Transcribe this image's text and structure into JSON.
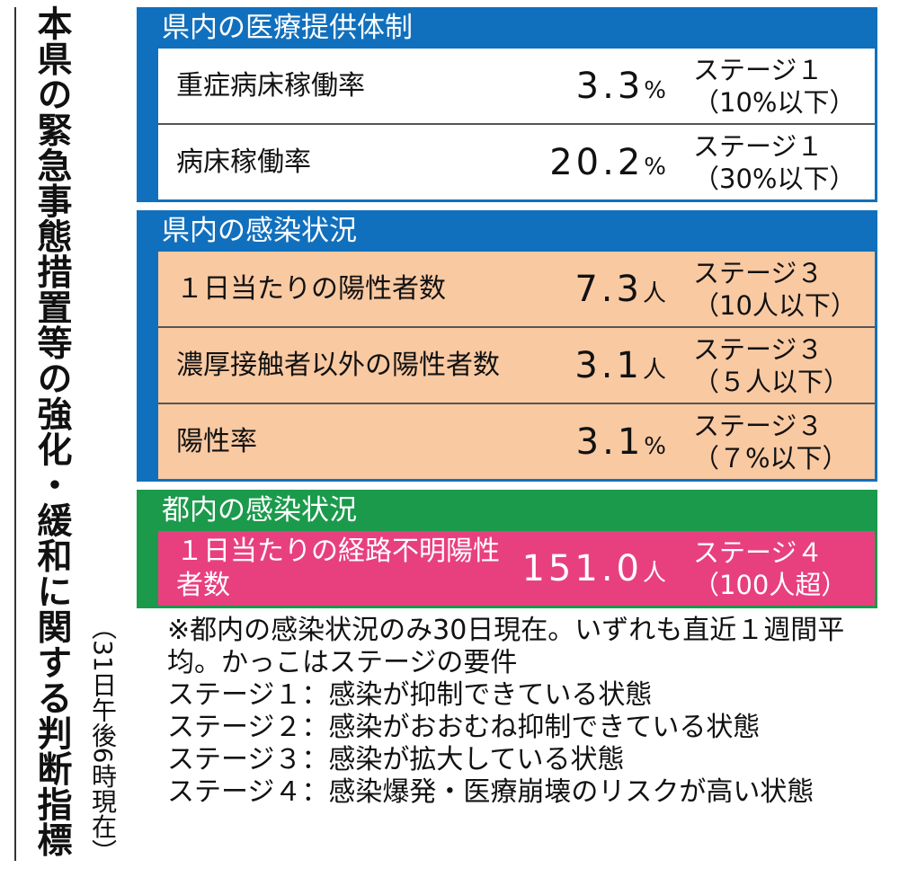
{
  "title": "本県の緊急事態措置等の強化・緩和に関する判断指標",
  "timestamp": "（31日午後6時現在）",
  "sections": [
    {
      "heading": "県内の医療提供体制",
      "color": "#1170bd",
      "row_color": "#ffffff",
      "text_color": "#111111",
      "rows": [
        {
          "label": "重症病床稼働率",
          "value": "3.3",
          "unit": "%",
          "stage": "ステージ１",
          "criterion": "（10%以下）"
        },
        {
          "label": "病床稼働率",
          "value": "20.2",
          "unit": "%",
          "stage": "ステージ１",
          "criterion": "（30%以下）"
        }
      ]
    },
    {
      "heading": "県内の感染状況",
      "color": "#1170bd",
      "row_color": "#f9c9a2",
      "text_color": "#111111",
      "rows": [
        {
          "label": "１日当たりの陽性者数",
          "value": "7.3",
          "unit": "人",
          "stage": "ステージ３",
          "criterion": "（10人以下）"
        },
        {
          "label": "濃厚接触者以外の陽性者数",
          "value": "3.1",
          "unit": "人",
          "stage": "ステージ３",
          "criterion": "（５人以下）"
        },
        {
          "label": "陽性率",
          "value": "3.1",
          "unit": "%",
          "stage": "ステージ３",
          "criterion": "（７%以下）"
        }
      ]
    },
    {
      "heading": "都内の感染状況",
      "color": "#1b9a4c",
      "row_color": "#e8407f",
      "text_color": "#ffffff",
      "rows": [
        {
          "label": "１日当たりの経路不明陽性者数",
          "value": "151.0",
          "unit": "人",
          "stage": "ステージ４",
          "criterion": "（100人超）"
        }
      ]
    }
  ],
  "notes": {
    "intro": "※都内の感染状況のみ30日現在。いずれも直近１週間平均。かっこはステージの要件",
    "separator": "：",
    "definitions": [
      {
        "term": "ステージ１",
        "text": "感染が抑制できている状態"
      },
      {
        "term": "ステージ２",
        "text": "感染がおおむね抑制できている状態"
      },
      {
        "term": "ステージ３",
        "text": "感染が拡大している状態"
      },
      {
        "term": "ステージ４",
        "text": "感染爆発・医療崩壊のリスクが高い状態"
      }
    ]
  }
}
